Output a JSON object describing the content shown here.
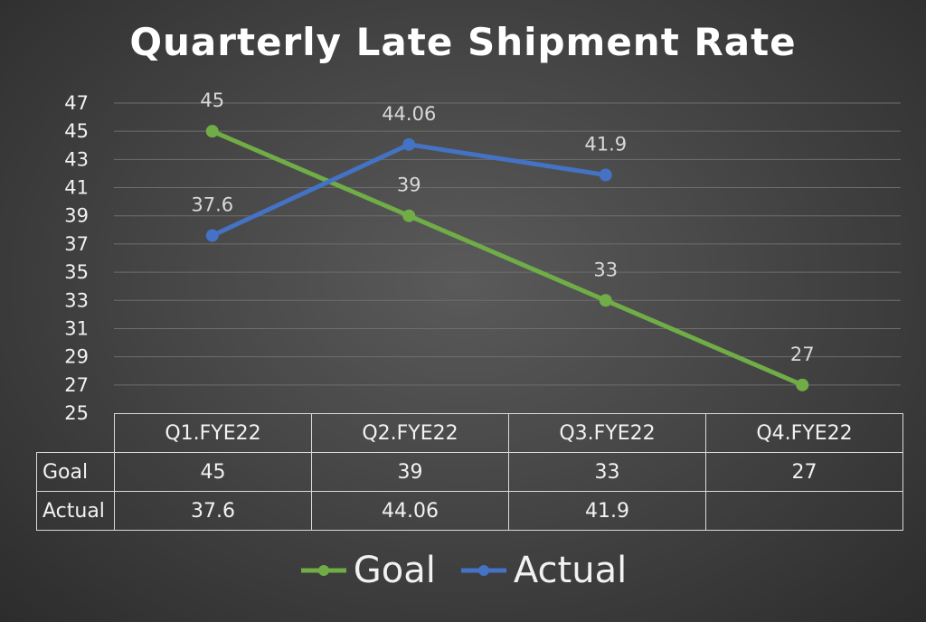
{
  "chart_data": {
    "type": "line",
    "title": "Quarterly Late Shipment Rate",
    "categories": [
      "Q1.FYE22",
      "Q2.FYE22",
      "Q3.FYE22",
      "Q4.FYE22"
    ],
    "yticks": [
      "47",
      "45",
      "43",
      "41",
      "39",
      "37",
      "35",
      "33",
      "31",
      "29",
      "27",
      "25"
    ],
    "ylim": [
      25,
      47
    ],
    "grid": true,
    "legend_position": "bottom",
    "series": [
      {
        "name": "Goal",
        "color": "#70ad47",
        "values": [
          45,
          39,
          33,
          27
        ],
        "labels": [
          "45",
          "39",
          "33",
          "27"
        ]
      },
      {
        "name": "Actual",
        "color": "#4472c4",
        "values": [
          37.6,
          44.06,
          41.9,
          null
        ],
        "labels": [
          "37.6",
          "44.06",
          "41.9",
          ""
        ]
      }
    ]
  }
}
